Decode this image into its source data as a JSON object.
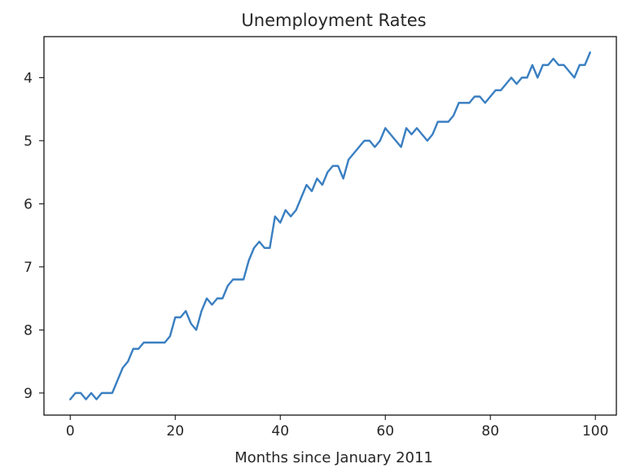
{
  "chart_data": {
    "type": "line",
    "title": "Unemployment Rates",
    "xlabel": "Months since January 2011",
    "ylabel": "",
    "xlim": [
      -5,
      104
    ],
    "ylim": [
      9.35,
      3.35
    ],
    "y_inverted": true,
    "grid": false,
    "legend": "none",
    "x_ticks": [
      0,
      20,
      40,
      60,
      80,
      100
    ],
    "x_tick_labels": [
      "0",
      "20",
      "40",
      "60",
      "80",
      "100"
    ],
    "y_ticks": [
      4,
      5,
      6,
      7,
      8,
      9
    ],
    "y_tick_labels": [
      "4",
      "5",
      "6",
      "7",
      "8",
      "9"
    ],
    "series": [
      {
        "color": "#3a7fc1",
        "x": [
          0,
          1,
          2,
          3,
          4,
          5,
          6,
          7,
          8,
          9,
          10,
          11,
          12,
          13,
          14,
          15,
          16,
          17,
          18,
          19,
          20,
          21,
          22,
          23,
          24,
          25,
          26,
          27,
          28,
          29,
          30,
          31,
          32,
          33,
          34,
          35,
          36,
          37,
          38,
          39,
          40,
          41,
          42,
          43,
          44,
          45,
          46,
          47,
          48,
          49,
          50,
          51,
          52,
          53,
          54,
          55,
          56,
          57,
          58,
          59,
          60,
          61,
          62,
          63,
          64,
          65,
          66,
          67,
          68,
          69,
          70,
          71,
          72,
          73,
          74,
          75,
          76,
          77,
          78,
          79,
          80,
          81,
          82,
          83,
          84,
          85,
          86,
          87,
          88,
          89,
          90,
          91,
          92,
          93,
          94,
          95,
          96,
          97,
          98,
          99
        ],
        "y": [
          9.1,
          9.0,
          9.0,
          9.1,
          9.0,
          9.1,
          9.0,
          9.0,
          9.0,
          8.8,
          8.6,
          8.5,
          8.3,
          8.3,
          8.2,
          8.2,
          8.2,
          8.2,
          8.2,
          8.1,
          7.8,
          7.8,
          7.7,
          7.9,
          8.0,
          7.7,
          7.5,
          7.6,
          7.5,
          7.5,
          7.3,
          7.2,
          7.2,
          7.2,
          6.9,
          6.7,
          6.6,
          6.7,
          6.7,
          6.2,
          6.3,
          6.1,
          6.2,
          6.1,
          5.9,
          5.7,
          5.8,
          5.6,
          5.7,
          5.5,
          5.4,
          5.4,
          5.6,
          5.3,
          5.2,
          5.1,
          5.0,
          5.0,
          5.1,
          5.0,
          4.8,
          4.9,
          5.0,
          5.1,
          4.8,
          4.9,
          4.8,
          4.9,
          5.0,
          4.9,
          4.7,
          4.7,
          4.7,
          4.6,
          4.4,
          4.4,
          4.4,
          4.3,
          4.3,
          4.4,
          4.3,
          4.2,
          4.2,
          4.1,
          4.0,
          4.1,
          4.0,
          4.0,
          3.8,
          4.0,
          3.8,
          3.8,
          3.7,
          3.8,
          3.8,
          3.9,
          4.0,
          3.8,
          3.8,
          3.6
        ]
      }
    ]
  }
}
